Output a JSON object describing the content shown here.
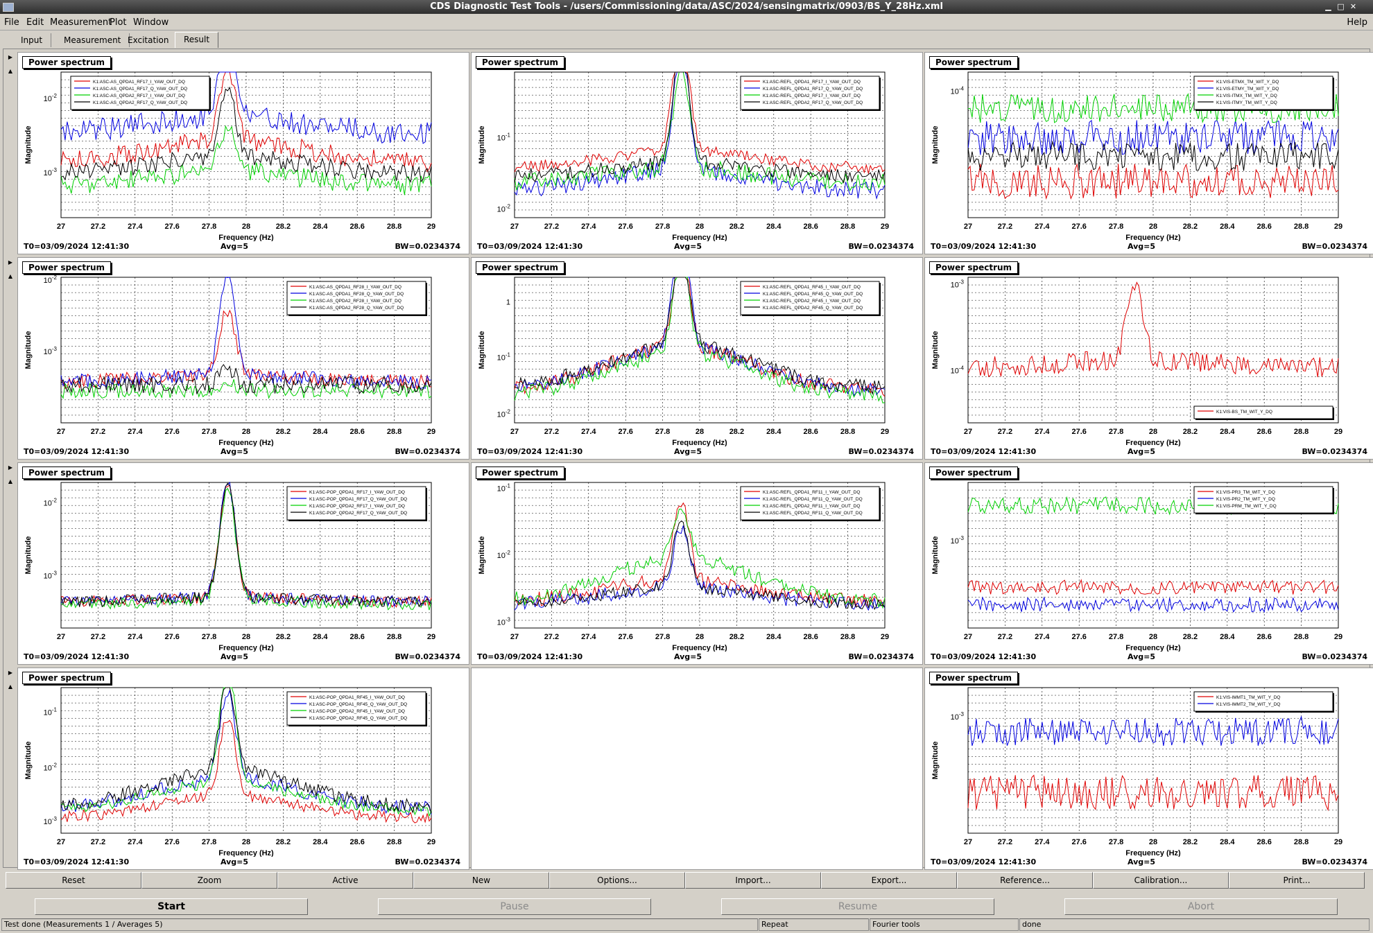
{
  "window": {
    "title": "CDS Diagnostic Test Tools - /users/Commissioning/data/ASC/2024/sensingmatrix/0903/BS_Y_28Hz.xml"
  },
  "menu": [
    "File",
    "Edit",
    "Measurement",
    "Plot",
    "Window"
  ],
  "help_label": "Help",
  "tabs": [
    "Input",
    "Measurement",
    "Excitation",
    "Result"
  ],
  "active_tab": "Result",
  "colors": {
    "red": "#e00000",
    "blue": "#0000e0",
    "green": "#00d000",
    "black": "#000000"
  },
  "plot_common": {
    "header": "Power spectrum",
    "xlabel": "Frequency (Hz)",
    "ylabel": "Magnitude",
    "t0": "T0=03/09/2024 12:41:30",
    "avg": "Avg=5",
    "bw": "BW=0.0234374",
    "xticks": [
      "27",
      "27.2",
      "27.4",
      "27.6",
      "27.8",
      "28",
      "28.2",
      "28.4",
      "28.6",
      "28.8",
      "29"
    ]
  },
  "plots": [
    {
      "id": "p1",
      "col": 0,
      "row": 0,
      "legend_pos": "top-left",
      "yticks": [
        {
          "label": "10",
          "exp": "-2",
          "frac": 0.18
        },
        {
          "label": "10",
          "exp": "-3",
          "frac": 0.69
        }
      ],
      "series": [
        {
          "name": "K1:ASC-AS_QPDA1_RF17_I_YAW_OUT_DQ",
          "color": "red",
          "base": 0.62,
          "noise": 0.07,
          "peak": 0.5,
          "bump": 0.15
        },
        {
          "name": "K1:ASC-AS_QPDA1_RF17_Q_YAW_OUT_DQ",
          "color": "blue",
          "base": 0.42,
          "noise": 0.08,
          "peak": 0.7,
          "bump": 0.12
        },
        {
          "name": "K1:ASC-AS_QPDA2_RF17_I_YAW_OUT_DQ",
          "color": "green",
          "base": 0.78,
          "noise": 0.07,
          "peak": 0.3,
          "bump": 0.1
        },
        {
          "name": "K1:ASC-AS_QPDA2_RF17_Q_YAW_OUT_DQ",
          "color": "black",
          "base": 0.7,
          "noise": 0.06,
          "peak": 0.45,
          "bump": 0.12
        }
      ]
    },
    {
      "id": "p2",
      "col": 1,
      "row": 0,
      "legend_pos": "top-right",
      "yticks": [
        {
          "label": "10",
          "exp": "-1",
          "frac": 0.45
        },
        {
          "label": "10",
          "exp": "-2",
          "frac": 0.94
        }
      ],
      "series": [
        {
          "name": "K1:ASC-REFL_QPDA1_RF17_I_YAW_OUT_DQ",
          "color": "red",
          "base": 0.66,
          "noise": 0.04,
          "peak": 0.9,
          "bump": 0.12
        },
        {
          "name": "K1:ASC-REFL_QPDA1_RF17_Q_YAW_OUT_DQ",
          "color": "blue",
          "base": 0.82,
          "noise": 0.06,
          "peak": 0.8,
          "bump": 0.15
        },
        {
          "name": "K1:ASC-REFL_QPDA2_RF17_I_YAW_OUT_DQ",
          "color": "green",
          "base": 0.76,
          "noise": 0.06,
          "peak": 0.7,
          "bump": 0.1
        },
        {
          "name": "K1:ASC-REFL_QPDA2_RF17_Q_YAW_OUT_DQ",
          "color": "black",
          "base": 0.72,
          "noise": 0.05,
          "peak": 0.8,
          "bump": 0.1
        }
      ]
    },
    {
      "id": "p3",
      "col": 2,
      "row": 0,
      "legend_pos": "top-right",
      "yticks": [
        {
          "label": "10",
          "exp": "-4",
          "frac": 0.13
        }
      ],
      "series": [
        {
          "name": "K1:VIS-ETMX_TM_WIT_Y_DQ",
          "color": "red",
          "base": 0.75,
          "noise": 0.12,
          "peak": 0,
          "bump": 0
        },
        {
          "name": "K1:VIS-ETMY_TM_WIT_Y_DQ",
          "color": "blue",
          "base": 0.45,
          "noise": 0.12,
          "peak": 0,
          "bump": 0
        },
        {
          "name": "K1:VIS-ITMX_TM_WIT_Y_DQ",
          "color": "green",
          "base": 0.25,
          "noise": 0.1,
          "peak": 0,
          "bump": 0
        },
        {
          "name": "K1:VIS-ITMY_TM_WIT_Y_DQ",
          "color": "black",
          "base": 0.58,
          "noise": 0.1,
          "peak": 0,
          "bump": 0
        }
      ]
    },
    {
      "id": "p4",
      "col": 0,
      "row": 1,
      "legend_pos": "top-right",
      "yticks": [
        {
          "label": "10",
          "exp": "-2",
          "frac": 0.02
        },
        {
          "label": "10",
          "exp": "-3",
          "frac": 0.51
        }
      ],
      "series": [
        {
          "name": "K1:ASC-AS_QPDA1_RF28_I_YAW_OUT_DQ",
          "color": "red",
          "base": 0.72,
          "noise": 0.05,
          "peak": 0.45,
          "bump": 0.05
        },
        {
          "name": "K1:ASC-AS_QPDA1_RF28_Q_YAW_OUT_DQ",
          "color": "blue",
          "base": 0.72,
          "noise": 0.05,
          "peak": 0.7,
          "bump": 0.05
        },
        {
          "name": "K1:ASC-AS_QPDA2_RF28_I_YAW_OUT_DQ",
          "color": "green",
          "base": 0.78,
          "noise": 0.05,
          "peak": 0.05,
          "bump": 0
        },
        {
          "name": "K1:ASC-AS_QPDA2_RF28_Q_YAW_OUT_DQ",
          "color": "black",
          "base": 0.74,
          "noise": 0.06,
          "peak": 0.1,
          "bump": 0
        }
      ]
    },
    {
      "id": "p5",
      "col": 1,
      "row": 1,
      "legend_pos": "top-right",
      "yticks": [
        {
          "label": "1",
          "exp": "",
          "frac": 0.17
        },
        {
          "label": "10",
          "exp": "-1",
          "frac": 0.55
        },
        {
          "label": "10",
          "exp": "-2",
          "frac": 0.94
        }
      ],
      "series": [
        {
          "name": "K1:ASC-REFL_QPDA1_RF45_I_YAW_OUT_DQ",
          "color": "red",
          "base": 0.78,
          "noise": 0.05,
          "peak": 0.7,
          "bump": 0.3
        },
        {
          "name": "K1:ASC-REFL_QPDA1_RF45_Q_YAW_OUT_DQ",
          "color": "blue",
          "base": 0.78,
          "noise": 0.05,
          "peak": 0.85,
          "bump": 0.3
        },
        {
          "name": "K1:ASC-REFL_QPDA2_RF45_I_YAW_OUT_DQ",
          "color": "green",
          "base": 0.82,
          "noise": 0.05,
          "peak": 0.7,
          "bump": 0.3
        },
        {
          "name": "K1:ASC-REFL_QPDA2_RF45_Q_YAW_OUT_DQ",
          "color": "black",
          "base": 0.76,
          "noise": 0.05,
          "peak": 0.65,
          "bump": 0.3
        }
      ]
    },
    {
      "id": "p6",
      "col": 2,
      "row": 1,
      "legend_pos": "bottom-right",
      "yticks": [
        {
          "label": "10",
          "exp": "-3",
          "frac": 0.05
        },
        {
          "label": "10",
          "exp": "-4",
          "frac": 0.64
        }
      ],
      "series": [
        {
          "name": "K1:VIS-BS_TM_WIT_Y_DQ",
          "color": "red",
          "base": 0.62,
          "noise": 0.07,
          "peak": 0.55,
          "bump": 0.05
        }
      ]
    },
    {
      "id": "p7",
      "col": 0,
      "row": 2,
      "legend_pos": "top-right",
      "yticks": [
        {
          "label": "10",
          "exp": "-2",
          "frac": 0.14
        },
        {
          "label": "10",
          "exp": "-3",
          "frac": 0.64
        }
      ],
      "series": [
        {
          "name": "K1:ASC-POP_QPDA1_RF17_I_YAW_OUT_DQ",
          "color": "red",
          "base": 0.82,
          "noise": 0.04,
          "peak": 0.8,
          "bump": 0.03
        },
        {
          "name": "K1:ASC-POP_QPDA1_RF17_Q_YAW_OUT_DQ",
          "color": "blue",
          "base": 0.82,
          "noise": 0.04,
          "peak": 0.8,
          "bump": 0.03
        },
        {
          "name": "K1:ASC-POP_QPDA2_RF17_I_YAW_OUT_DQ",
          "color": "green",
          "base": 0.84,
          "noise": 0.04,
          "peak": 0.78,
          "bump": 0.03
        },
        {
          "name": "K1:ASC-POP_QPDA2_RF17_Q_YAW_OUT_DQ",
          "color": "black",
          "base": 0.82,
          "noise": 0.04,
          "peak": 0.78,
          "bump": 0.03
        }
      ]
    },
    {
      "id": "p8",
      "col": 1,
      "row": 2,
      "legend_pos": "top-right",
      "yticks": [
        {
          "label": "10",
          "exp": "-1",
          "frac": 0.04
        },
        {
          "label": "10",
          "exp": "-2",
          "frac": 0.5
        },
        {
          "label": "10",
          "exp": "-3",
          "frac": 0.96
        }
      ],
      "series": [
        {
          "name": "K1:ASC-REFL_QPDA1_RF11_I_YAW_OUT_DQ",
          "color": "red",
          "base": 0.82,
          "noise": 0.05,
          "peak": 0.55,
          "bump": 0.15
        },
        {
          "name": "K1:ASC-REFL_QPDA1_RF11_Q_YAW_OUT_DQ",
          "color": "blue",
          "base": 0.84,
          "noise": 0.05,
          "peak": 0.4,
          "bump": 0.12
        },
        {
          "name": "K1:ASC-REFL_QPDA2_RF11_I_YAW_OUT_DQ",
          "color": "green",
          "base": 0.82,
          "noise": 0.05,
          "peak": 0.35,
          "bump": 0.3
        },
        {
          "name": "K1:ASC-REFL_QPDA2_RF11_Q_YAW_OUT_DQ",
          "color": "black",
          "base": 0.84,
          "noise": 0.04,
          "peak": 0.45,
          "bump": 0.12
        }
      ]
    },
    {
      "id": "p9",
      "col": 2,
      "row": 2,
      "legend_pos": "top-right",
      "yticks": [
        {
          "label": "10",
          "exp": "-3",
          "frac": 0.4
        }
      ],
      "series": [
        {
          "name": "K1:VIS-PR3_TM_WIT_Y_DQ",
          "color": "red",
          "base": 0.72,
          "noise": 0.05,
          "peak": 0,
          "bump": 0
        },
        {
          "name": "K1:VIS-PR2_TM_WIT_Y_DQ",
          "color": "blue",
          "base": 0.84,
          "noise": 0.05,
          "peak": 0,
          "bump": 0
        },
        {
          "name": "K1:VIS-PRM_TM_WIT_Y_DQ",
          "color": "green",
          "base": 0.16,
          "noise": 0.06,
          "peak": 0,
          "bump": 0
        }
      ]
    },
    {
      "id": "p10",
      "col": 0,
      "row": 3,
      "legend_pos": "top-right",
      "yticks": [
        {
          "label": "10",
          "exp": "-1",
          "frac": 0.17
        },
        {
          "label": "10",
          "exp": "-2",
          "frac": 0.55
        },
        {
          "label": "10",
          "exp": "-3",
          "frac": 0.92
        }
      ],
      "series": [
        {
          "name": "K1:ASC-POP_QPDA1_RF45_I_YAW_OUT_DQ",
          "color": "red",
          "base": 0.9,
          "noise": 0.04,
          "peak": 0.55,
          "bump": 0.15
        },
        {
          "name": "K1:ASC-POP_QPDA1_RF45_Q_YAW_OUT_DQ",
          "color": "blue",
          "base": 0.83,
          "noise": 0.05,
          "peak": 0.6,
          "bump": 0.2
        },
        {
          "name": "K1:ASC-POP_QPDA2_RF45_I_YAW_OUT_DQ",
          "color": "green",
          "base": 0.85,
          "noise": 0.04,
          "peak": 0.8,
          "bump": 0.2
        },
        {
          "name": "K1:ASC-POP_QPDA2_RF45_Q_YAW_OUT_DQ",
          "color": "black",
          "base": 0.82,
          "noise": 0.05,
          "peak": 0.6,
          "bump": 0.25
        }
      ]
    },
    {
      "id": "p12",
      "col": 2,
      "row": 3,
      "legend_pos": "top-right",
      "yticks": [
        {
          "label": "10",
          "exp": "-3",
          "frac": 0.2
        }
      ],
      "series": [
        {
          "name": "K1:VIS-IMMT1_TM_WIT_Y_DQ",
          "color": "red",
          "base": 0.72,
          "noise": 0.12,
          "peak": 0,
          "bump": 0
        },
        {
          "name": "K1:VIS-IMMT2_TM_WIT_Y_DQ",
          "color": "blue",
          "base": 0.3,
          "noise": 0.1,
          "peak": 0,
          "bump": 0
        }
      ]
    }
  ],
  "buttons": [
    "Reset",
    "Zoom",
    "Active",
    "New",
    "Options...",
    "Import...",
    "Export...",
    "Reference...",
    "Calibration...",
    "Print..."
  ],
  "run_buttons": [
    {
      "label": "Start",
      "enabled": true
    },
    {
      "label": "Pause",
      "enabled": false
    },
    {
      "label": "Resume",
      "enabled": false
    },
    {
      "label": "Abort",
      "enabled": false
    }
  ],
  "status": {
    "message": "Test done (Measurements 1 / Averages 5)",
    "repeat": "Repeat",
    "tool": "Fourier tools",
    "state": "done"
  }
}
